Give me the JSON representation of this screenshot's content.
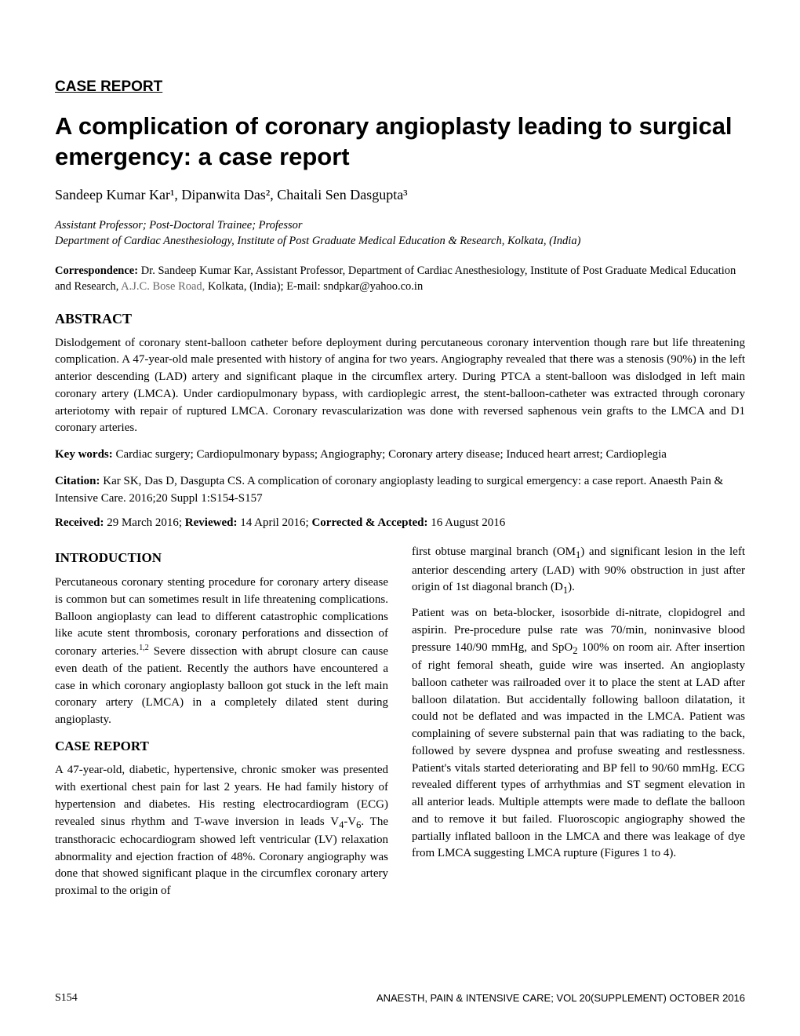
{
  "section_label": "CASE REPORT",
  "title": "A complication of coronary angioplasty leading to surgical emergency: a case report",
  "authors_html": "Sandeep Kumar Kar¹, Dipanwita Das², Chaitali Sen Dasgupta³",
  "affiliation_line1": "Assistant Professor; Post-Doctoral Trainee; Professor",
  "affiliation_line2": "Department of Cardiac Anesthesiology, Institute of Post Graduate Medical Education & Research, Kolkata, (India)",
  "correspondence_label": "Correspondence:",
  "correspondence_text1": " Dr. Sandeep Kumar Kar, Assistant Professor, Department of Cardiac Anesthesiology, Institute of Post Graduate Medical Education and Research, ",
  "correspondence_addr": "A.J.C. Bose Road,",
  "correspondence_text2": " Kolkata, (India); E-mail: sndpkar@yahoo.co.in",
  "abstract_heading": "ABSTRACT",
  "abstract_body": "Dislodgement of coronary stent-balloon catheter before deployment during percutaneous coronary intervention though rare but life threatening complication. A 47-year-old male presented with history of angina for two years. Angiography revealed that there was a stenosis (90%) in the left anterior descending (LAD) artery and significant plaque in the circumflex artery. During PTCA a stent-balloon was dislodged in left main coronary artery (LMCA). Under cardiopulmonary bypass, with cardioplegic arrest, the stent-balloon-catheter was extracted through coronary arteriotomy with repair of ruptured LMCA. Coronary revascularization was done with reversed saphenous vein grafts to the LMCA and D1 coronary arteries.",
  "keywords_label": "Key words:",
  "keywords_text": " Cardiac surgery; Cardiopulmonary bypass; Angiography; Coronary artery disease; Induced heart arrest; Cardioplegia",
  "citation_label": "Citation:",
  "citation_text": " Kar SK, Das D, Dasgupta CS. A complication of coronary angioplasty leading to surgical emergency: a case report. Anaesth Pain & Intensive Care. 2016;20 Suppl 1:S154-S157",
  "received_label": "Received:",
  "received_text": " 29 March 2016; ",
  "reviewed_label": "Reviewed:",
  "reviewed_text": " 14 April 2016; ",
  "accepted_label": "Corrected & Accepted:",
  "accepted_text": " 16 August 2016",
  "intro_heading": "INTRODUCTION",
  "intro_p1": "Percutaneous coronary stenting procedure for coronary artery disease is common but can sometimes result in life threatening complications. Balloon angioplasty can lead to different catastrophic complications like acute stent thrombosis, coronary perforations and dissection of coronary arteries.",
  "intro_sup": "1,2",
  "intro_p1b": " Severe dissection with abrupt closure can cause even death of the patient. Recently the authors have encountered a case in which coronary angioplasty balloon got stuck in the left main coronary artery (LMCA) in a completely dilated stent during angioplasty.",
  "case_heading": "CASE REPORT",
  "case_p1a": "A 47-year-old, diabetic, hypertensive, chronic smoker was presented with exertional chest pain for last 2 years. He had family history of hypertension and diabetes. His resting electrocardiogram (ECG) revealed sinus rhythm and T-wave inversion in leads V",
  "case_sub1": "4",
  "case_dash": "-V",
  "case_sub2": "6",
  "case_p1b": ". The transthoracic echocardiogram showed left ventricular (LV) relaxation abnormality and ejection fraction of 48%. Coronary angiography was done that showed significant plaque in the circumflex coronary artery proximal to the origin of",
  "col2_p1a": "first obtuse marginal branch (OM",
  "col2_sub1": "1",
  "col2_p1b": ") and significant lesion in the left anterior descending artery (LAD) with 90% obstruction in just after origin of 1st diagonal branch (D",
  "col2_sub2": "1",
  "col2_p1c": ").",
  "col2_p2a": "Patient was on beta-blocker, isosorbide di-nitrate, clopidogrel and aspirin. Pre-procedure pulse rate was 70/min, noninvasive blood pressure 140/90 mmHg, and SpO",
  "col2_sub3": "2",
  "col2_p2b": " 100% on room air. After insertion of right femoral sheath, guide wire was inserted. An angioplasty balloon catheter was railroaded over it to place the stent at LAD after balloon dilatation. But accidentally following balloon dilatation, it could not be deflated and was impacted in the LMCA. Patient was complaining of severe substernal pain that was radiating to the back, followed by severe dyspnea and profuse sweating and restlessness. Patient's vitals started deteriorating and BP fell to 90/60 mmHg. ECG revealed different types of arrhythmias and ST segment elevation in all anterior leads. Multiple attempts were made to deflate the balloon and to remove it but failed. Fluoroscopic angiography showed the partially inflated balloon in the LMCA and there was leakage of dye from LMCA suggesting LMCA rupture (Figures 1 to 4).",
  "page_number": "S154",
  "footer_journal": "ANAESTH, PAIN & INTENSIVE CARE; VOL 20(SUPPLEMENT) OCTOBER 2016"
}
